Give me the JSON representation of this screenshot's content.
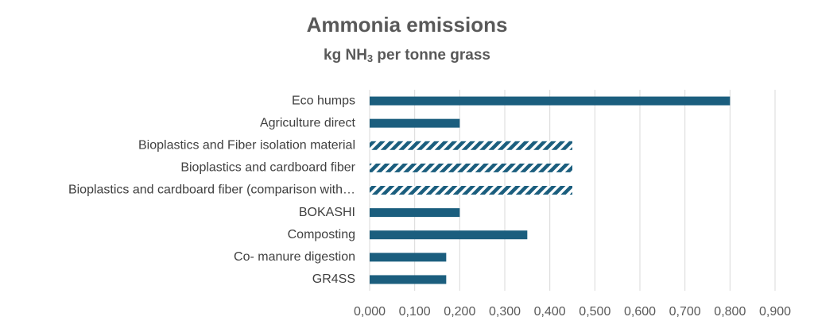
{
  "chart_data": {
    "type": "barh",
    "title": "Ammonia emissions",
    "subtitle": [
      "kg NH",
      "3",
      " per tonne grass"
    ],
    "categories": [
      "Eco humps",
      "Agriculture direct",
      "Bioplastics and Fiber isolation material",
      "Bioplastics and cardboard fiber",
      "Bioplastics and cardboard fiber (comparison with…",
      "BOKASHI",
      "Composting",
      "Co- manure digestion",
      "GR4SS"
    ],
    "values": [
      0.8,
      0.2,
      0.45,
      0.45,
      0.45,
      0.2,
      0.35,
      0.17,
      0.17
    ],
    "hatched": [
      false,
      false,
      true,
      true,
      true,
      false,
      false,
      false,
      false
    ],
    "color": "#1b5e7e",
    "xlim": [
      0,
      0.9
    ],
    "xticks": [
      {
        "value": 0,
        "label": "0,000"
      },
      {
        "value": 0.1,
        "label": "0,100"
      },
      {
        "value": 0.2,
        "label": "0,200"
      },
      {
        "value": 0.3,
        "label": "0,300"
      },
      {
        "value": 0.4,
        "label": "0,400"
      },
      {
        "value": 0.5,
        "label": "0,500"
      },
      {
        "value": 0.6,
        "label": "0,600"
      },
      {
        "value": 0.7,
        "label": "0,700"
      },
      {
        "value": 0.8,
        "label": "0,800"
      },
      {
        "value": 0.9,
        "label": "0,900"
      }
    ],
    "grid": true
  }
}
